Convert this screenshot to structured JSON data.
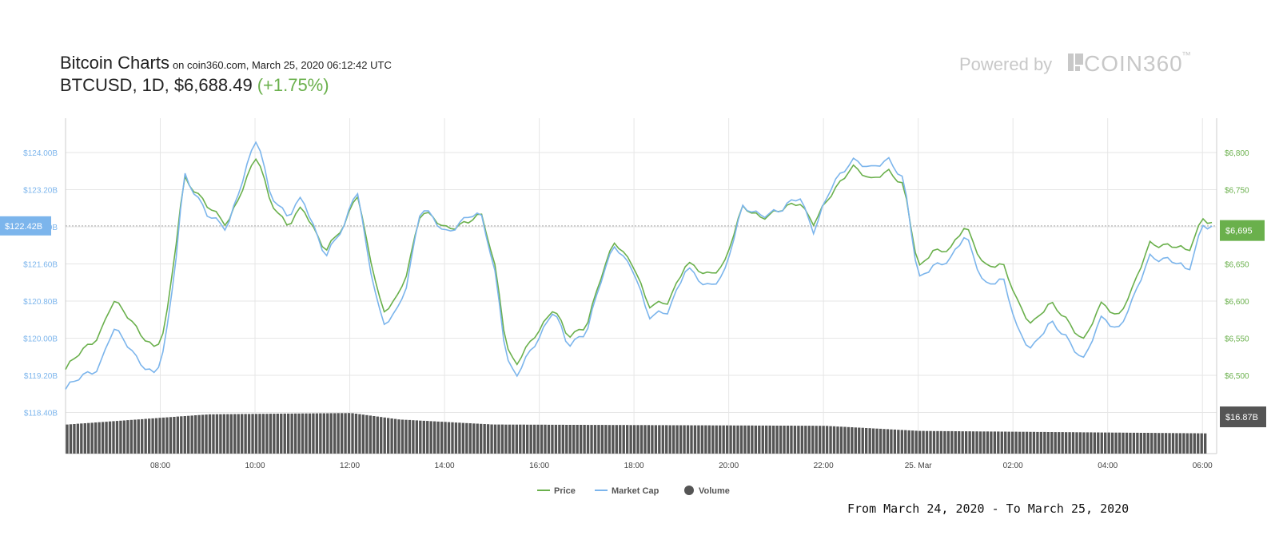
{
  "header": {
    "title": "Bitcoin Charts",
    "subtitle": "on coin360.com, March 25, 2020 06:12:42 UTC",
    "pair": "BTCUSD,",
    "interval": "1D,",
    "price": "$6,688.49",
    "change": "(+1.75%)"
  },
  "branding": {
    "powered_by": "Powered by",
    "brand": "COIN360",
    "tm": "™"
  },
  "caption": "From March 24, 2020 - To March 25, 2020",
  "colors": {
    "price": "#6ab04c",
    "market_cap": "#7cb5ec",
    "volume": "#555555",
    "change_positive": "#6ab04c",
    "grid": "#e6e6e6"
  },
  "chart_data": {
    "type": "line",
    "x_axis": {
      "start_hour": 6.0,
      "end_hour": 30.3,
      "tick_hours": [
        8,
        10,
        12,
        14,
        16,
        18,
        20,
        22,
        24,
        26,
        28,
        30
      ],
      "tick_labels": [
        "08:00",
        "10:00",
        "12:00",
        "14:00",
        "16:00",
        "18:00",
        "20:00",
        "22:00",
        "25. Mar",
        "02:00",
        "04:00",
        "06:00"
      ]
    },
    "y_left": {
      "label_ticks": [
        "$124.00B",
        "$123.20B",
        "$122.40B",
        "$121.60B",
        "$120.80B",
        "$120.00B",
        "$119.20B",
        "$118.40B"
      ],
      "tick_values": [
        124.0,
        123.2,
        122.4,
        121.6,
        120.8,
        120.0,
        119.2,
        118.4
      ],
      "range": [
        118.4,
        124.8
      ],
      "current_label": "$122.42B",
      "current_value": 122.42
    },
    "y_right": {
      "label_ticks": [
        "$6,800",
        "$6,750",
        "$6,700",
        "$6,650",
        "$6,600",
        "$6,550",
        "$6,500"
      ],
      "tick_values": [
        6800,
        6750,
        6700,
        6650,
        6600,
        6550,
        6500
      ],
      "range": [
        6450,
        6850
      ],
      "current_label": "$6,695",
      "current_value": 6695,
      "volume_label": "$16.87B"
    },
    "series": [
      {
        "name": "Price",
        "unit": "USD",
        "key_hours": [
          6.0,
          6.7,
          7.0,
          7.5,
          7.9,
          8.1,
          8.3,
          8.5,
          9.0,
          9.4,
          9.8,
          10.05,
          10.3,
          10.7,
          11.0,
          11.5,
          11.9,
          12.15,
          12.4,
          12.7,
          13.0,
          13.2,
          13.5,
          14.0,
          14.5,
          14.8,
          15.1,
          15.3,
          15.5,
          15.9,
          16.3,
          16.6,
          17.0,
          17.3,
          17.6,
          18.0,
          18.3,
          18.7,
          19.1,
          19.5,
          19.9,
          20.3,
          20.7,
          21.1,
          21.5,
          21.8,
          22.2,
          22.6,
          23.0,
          23.4,
          23.7,
          24.0,
          24.3,
          24.7,
          25.0,
          25.4,
          25.8,
          26.1,
          26.4,
          26.8,
          27.1,
          27.5,
          27.9,
          28.2,
          28.5,
          28.9,
          29.3,
          29.7,
          30.0,
          30.2
        ],
        "key_values": [
          6508,
          6555,
          6600,
          6565,
          6535,
          6560,
          6660,
          6770,
          6725,
          6705,
          6760,
          6795,
          6740,
          6700,
          6725,
          6670,
          6700,
          6750,
          6670,
          6580,
          6605,
          6640,
          6720,
          6700,
          6705,
          6715,
          6640,
          6540,
          6510,
          6555,
          6590,
          6550,
          6570,
          6630,
          6680,
          6650,
          6590,
          6600,
          6650,
          6635,
          6650,
          6725,
          6715,
          6720,
          6735,
          6705,
          6745,
          6785,
          6760,
          6778,
          6755,
          6640,
          6670,
          6670,
          6700,
          6650,
          6645,
          6600,
          6570,
          6595,
          6580,
          6545,
          6600,
          6580,
          6610,
          6680,
          6675,
          6665,
          6715,
          6705
        ]
      },
      {
        "name": "Market Cap",
        "unit": "USD bn",
        "key_hours": [
          6.0,
          6.7,
          7.0,
          7.5,
          7.9,
          8.1,
          8.3,
          8.5,
          9.0,
          9.4,
          9.8,
          10.05,
          10.3,
          10.7,
          11.0,
          11.5,
          11.9,
          12.15,
          12.4,
          12.7,
          13.0,
          13.2,
          13.5,
          14.0,
          14.5,
          14.8,
          15.1,
          15.3,
          15.5,
          15.9,
          16.3,
          16.6,
          17.0,
          17.3,
          17.6,
          18.0,
          18.3,
          18.7,
          19.1,
          19.5,
          19.9,
          20.3,
          20.7,
          21.1,
          21.5,
          21.8,
          22.2,
          22.6,
          23.0,
          23.4,
          23.7,
          24.0,
          24.3,
          24.7,
          25.0,
          25.4,
          25.8,
          26.1,
          26.4,
          26.8,
          27.1,
          27.5,
          27.9,
          28.2,
          28.5,
          28.9,
          29.3,
          29.7,
          30.0,
          30.2
        ],
        "key_values": [
          118.9,
          119.4,
          120.2,
          119.6,
          119.2,
          119.8,
          121.4,
          123.6,
          122.6,
          122.4,
          123.6,
          124.3,
          123.2,
          122.6,
          123.0,
          121.8,
          122.4,
          123.3,
          121.7,
          120.2,
          120.6,
          121.2,
          122.8,
          122.3,
          122.6,
          122.6,
          121.3,
          119.6,
          119.1,
          119.9,
          120.6,
          119.8,
          120.2,
          121.2,
          122.0,
          121.5,
          120.4,
          120.6,
          121.5,
          121.1,
          121.4,
          122.8,
          122.7,
          122.7,
          123.1,
          122.3,
          123.3,
          123.9,
          123.6,
          123.9,
          123.4,
          121.2,
          121.6,
          121.7,
          122.2,
          121.2,
          121.2,
          120.2,
          119.8,
          120.3,
          120.1,
          119.5,
          120.5,
          120.2,
          120.7,
          121.8,
          121.7,
          121.4,
          122.5,
          122.4
        ]
      },
      {
        "name": "Volume",
        "unit": "USD bn",
        "key_hours": [
          6.0,
          9.0,
          12.0,
          13.0,
          15.0,
          22.0,
          24.0,
          30.3
        ],
        "key_values": [
          16.9,
          17.7,
          17.8,
          17.3,
          16.9,
          16.8,
          16.4,
          16.2
        ]
      }
    ],
    "legend": {
      "placement": "bottom-center",
      "entries": [
        "Price",
        "Market Cap",
        "Volume"
      ]
    },
    "grid": true
  }
}
